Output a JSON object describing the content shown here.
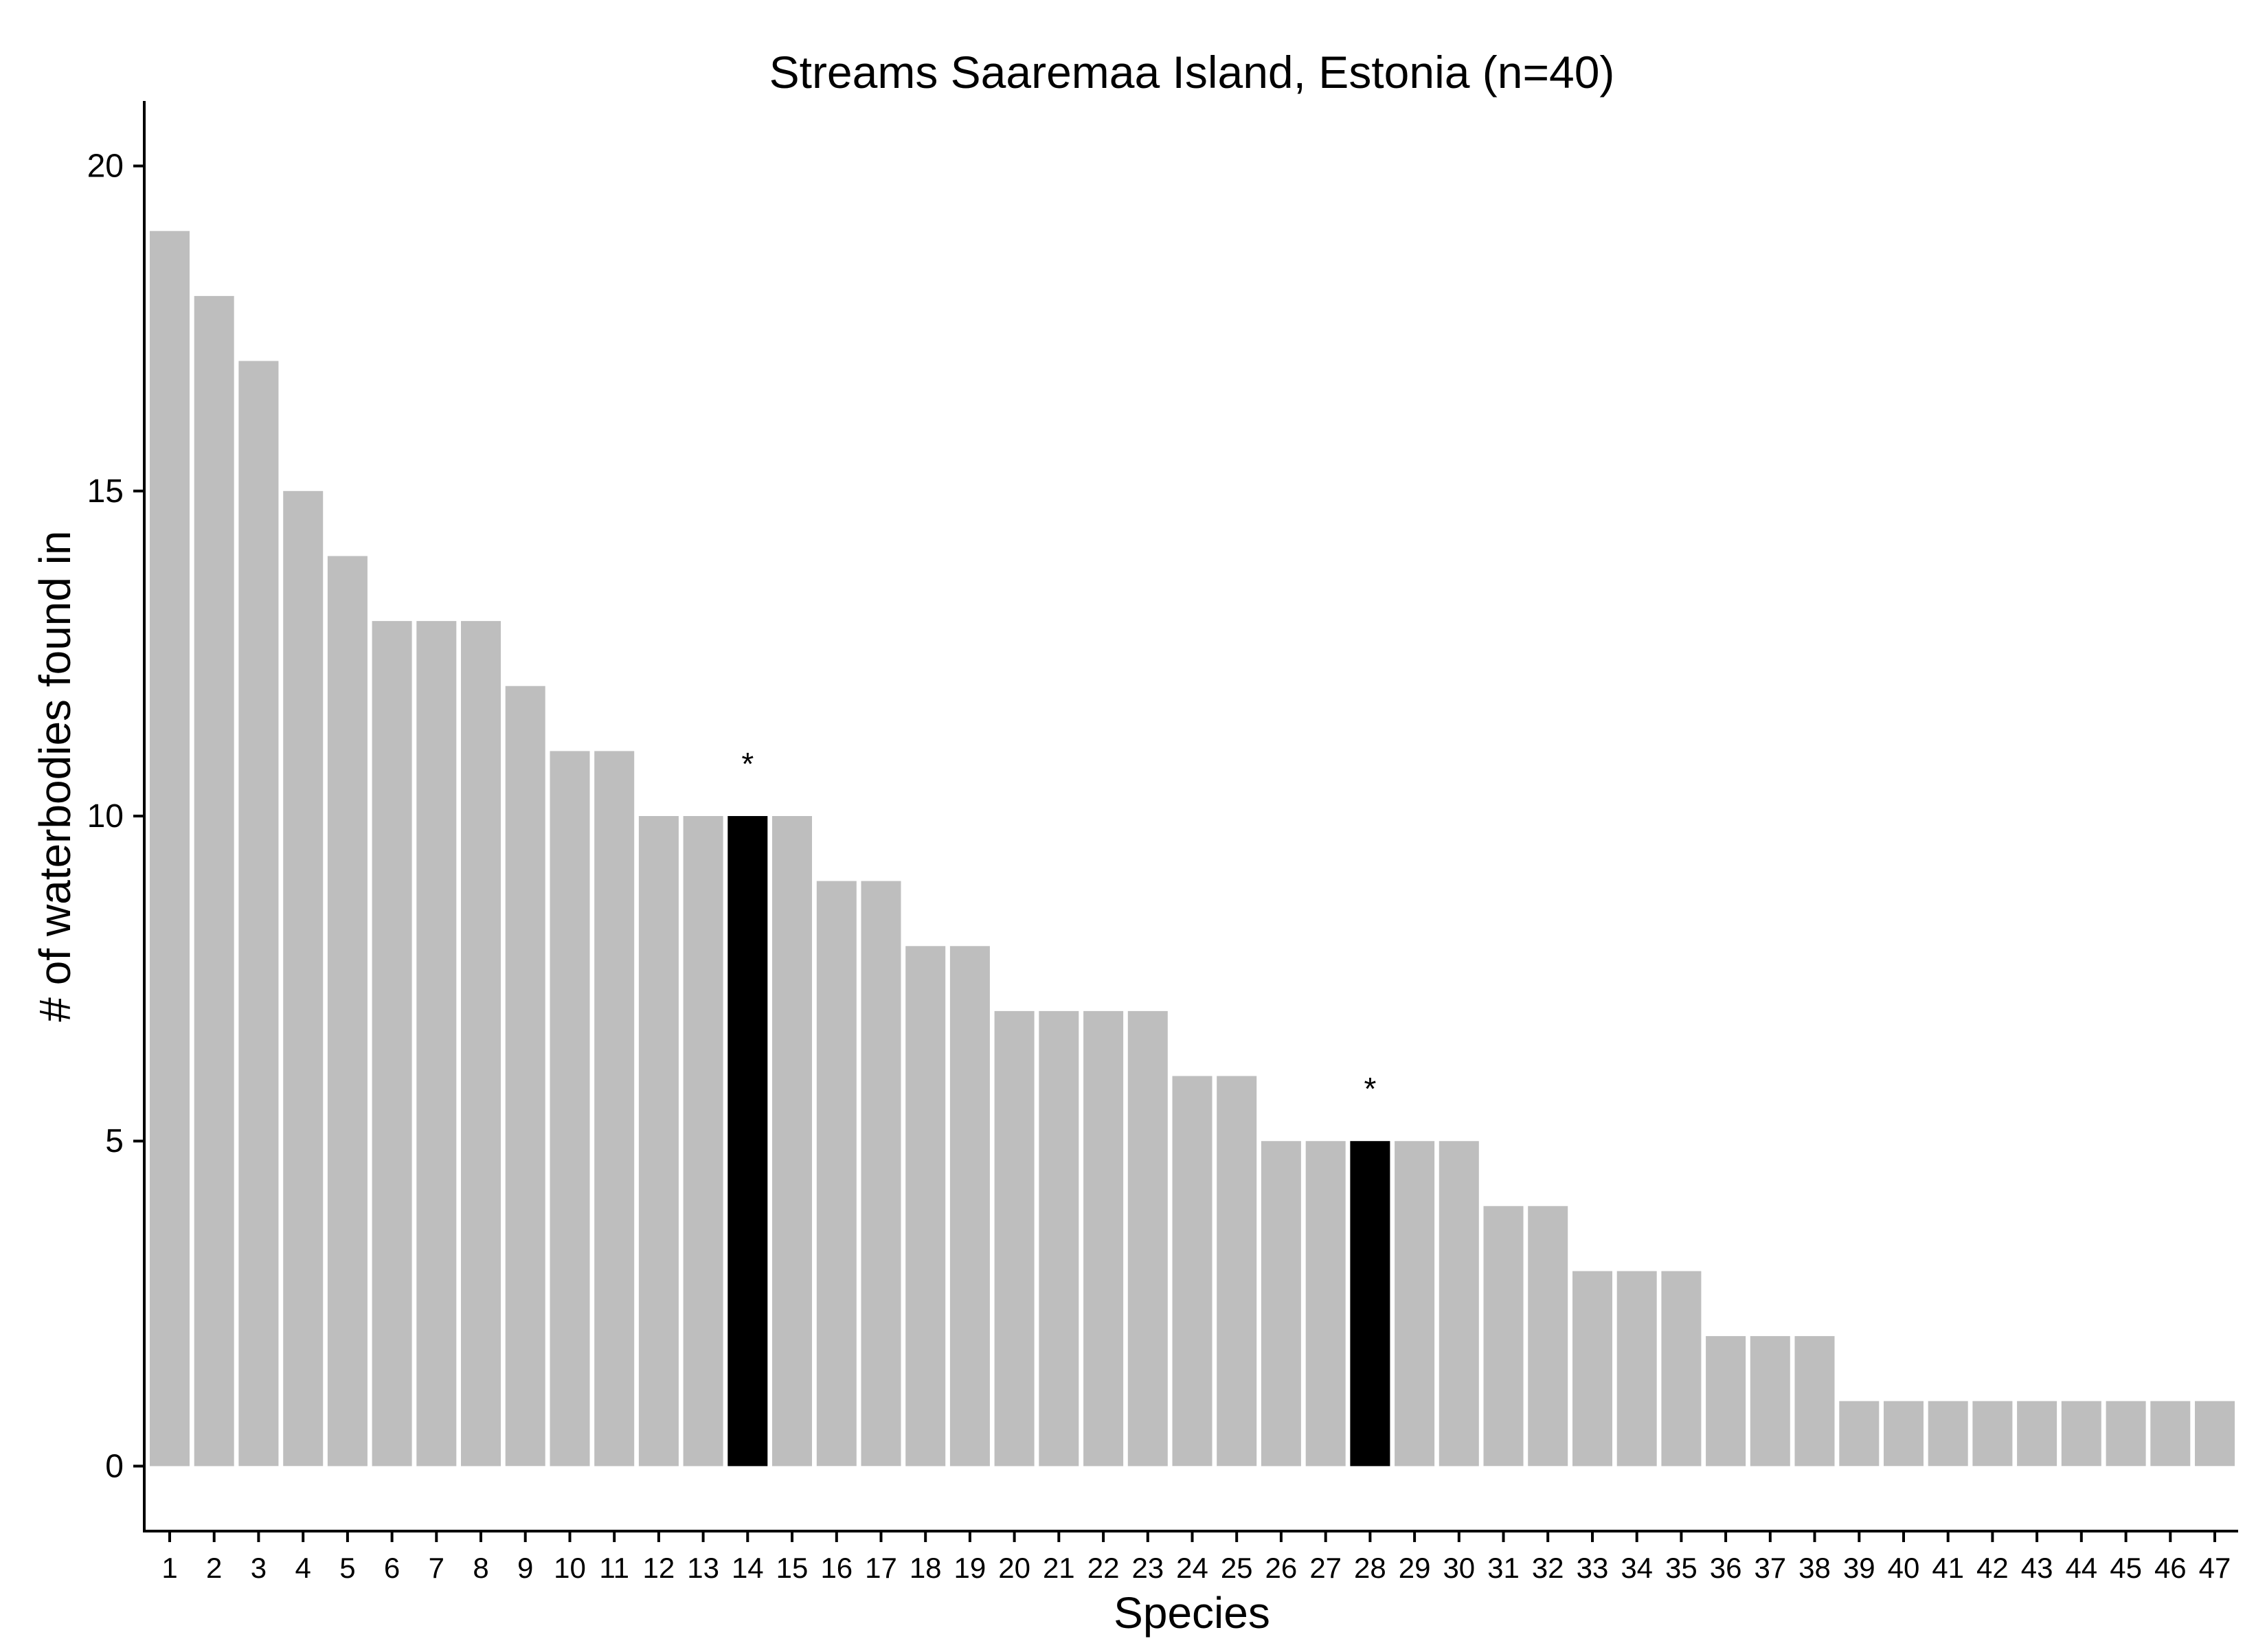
{
  "chart_data": {
    "type": "bar",
    "title": "Streams Saaremaa Island, Estonia (n=40)",
    "xlabel": "Species",
    "ylabel": "# of waterbodies found in",
    "categories": [
      "1",
      "2",
      "3",
      "4",
      "5",
      "6",
      "7",
      "8",
      "9",
      "10",
      "11",
      "12",
      "13",
      "14",
      "15",
      "16",
      "17",
      "18",
      "19",
      "20",
      "21",
      "22",
      "23",
      "24",
      "25",
      "26",
      "27",
      "28",
      "29",
      "30",
      "31",
      "32",
      "33",
      "34",
      "35",
      "36",
      "37",
      "38",
      "39",
      "40",
      "41",
      "42",
      "43",
      "44",
      "45",
      "46",
      "47"
    ],
    "values": [
      19,
      18,
      17,
      15,
      14,
      13,
      13,
      13,
      12,
      11,
      11,
      10,
      10,
      10,
      10,
      9,
      9,
      8,
      8,
      7,
      7,
      7,
      7,
      6,
      6,
      5,
      5,
      5,
      5,
      5,
      4,
      4,
      3,
      3,
      3,
      2,
      2,
      2,
      1,
      1,
      1,
      1,
      1,
      1,
      1,
      1,
      1
    ],
    "highlighted": [
      {
        "category": "14",
        "annotation": "*"
      },
      {
        "category": "28",
        "annotation": "*"
      }
    ],
    "ylim": [
      -1,
      21
    ],
    "yticks": [
      0,
      5,
      10,
      15,
      20
    ],
    "grid": false,
    "legend": "none",
    "colors": {
      "bar": "#bebebe",
      "highlight": "#000000",
      "axis": "#000000",
      "background": "#ffffff"
    }
  }
}
